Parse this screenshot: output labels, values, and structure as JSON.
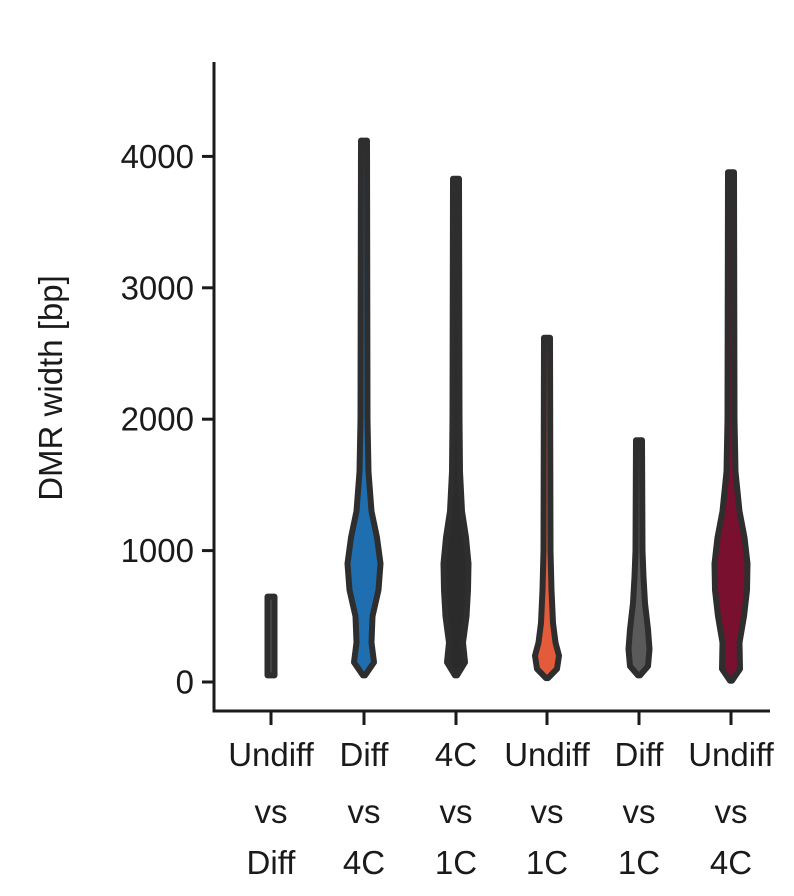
{
  "chart_data": {
    "type": "violin",
    "title": "",
    "xlabel": "",
    "ylabel": "DMR width [bp]",
    "ylim": [
      -200,
      4650
    ],
    "yticks": [
      0,
      1000,
      2000,
      3000,
      4000
    ],
    "grid": false,
    "legend": "none",
    "categories": [
      {
        "lines": [
          "Undiff",
          "vs",
          "Diff"
        ],
        "fill": "#5a5a5a"
      },
      {
        "lines": [
          "Diff",
          "vs",
          "4C"
        ],
        "fill": "#1f6fb0"
      },
      {
        "lines": [
          "4C",
          "vs",
          "1C"
        ],
        "fill": "#2b2b2b"
      },
      {
        "lines": [
          "Undiff",
          "vs",
          "1C"
        ],
        "fill": "#e35b3a"
      },
      {
        "lines": [
          "Diff",
          "vs",
          "1C"
        ],
        "fill": "#5a5a5a"
      },
      {
        "lines": [
          "Undiff",
          "vs",
          "4C"
        ],
        "fill": "#7a1030"
      }
    ],
    "series": [
      {
        "min": 50,
        "max": 650,
        "profile": [
          [
            50,
            0.35
          ],
          [
            650,
            0.35
          ]
        ]
      },
      {
        "min": 50,
        "max": 4120,
        "profile": [
          [
            50,
            0.1
          ],
          [
            150,
            1.0
          ],
          [
            300,
            0.75
          ],
          [
            500,
            0.85
          ],
          [
            700,
            1.45
          ],
          [
            900,
            1.65
          ],
          [
            1100,
            1.3
          ],
          [
            1300,
            0.75
          ],
          [
            1600,
            0.45
          ],
          [
            2000,
            0.35
          ],
          [
            4120,
            0.3
          ]
        ]
      },
      {
        "min": 50,
        "max": 3830,
        "profile": [
          [
            50,
            0.1
          ],
          [
            150,
            0.9
          ],
          [
            300,
            0.7
          ],
          [
            500,
            1.05
          ],
          [
            700,
            1.2
          ],
          [
            900,
            1.25
          ],
          [
            1100,
            1.0
          ],
          [
            1300,
            0.6
          ],
          [
            1600,
            0.4
          ],
          [
            2000,
            0.35
          ],
          [
            3830,
            0.3
          ]
        ]
      },
      {
        "min": 30,
        "max": 2620,
        "profile": [
          [
            30,
            0.1
          ],
          [
            100,
            1.0
          ],
          [
            200,
            1.2
          ],
          [
            300,
            0.85
          ],
          [
            450,
            0.6
          ],
          [
            700,
            0.45
          ],
          [
            1000,
            0.35
          ],
          [
            2620,
            0.3
          ]
        ]
      },
      {
        "min": 50,
        "max": 1840,
        "profile": [
          [
            50,
            0.1
          ],
          [
            120,
            0.9
          ],
          [
            250,
            1.05
          ],
          [
            400,
            0.9
          ],
          [
            600,
            0.6
          ],
          [
            800,
            0.45
          ],
          [
            1000,
            0.35
          ],
          [
            1840,
            0.3
          ]
        ]
      },
      {
        "min": 10,
        "max": 3880,
        "profile": [
          [
            10,
            0.1
          ],
          [
            100,
            0.9
          ],
          [
            300,
            0.85
          ],
          [
            500,
            1.3
          ],
          [
            700,
            1.6
          ],
          [
            900,
            1.65
          ],
          [
            1100,
            1.35
          ],
          [
            1300,
            0.85
          ],
          [
            1600,
            0.45
          ],
          [
            2000,
            0.35
          ],
          [
            3880,
            0.3
          ]
        ]
      }
    ],
    "inner_marks": [
      {
        "index": 1,
        "from": 500,
        "to": 1100
      },
      {
        "index": 3,
        "from": 230,
        "to": 340
      },
      {
        "index": 5,
        "from": 500,
        "to": 1250
      }
    ]
  }
}
